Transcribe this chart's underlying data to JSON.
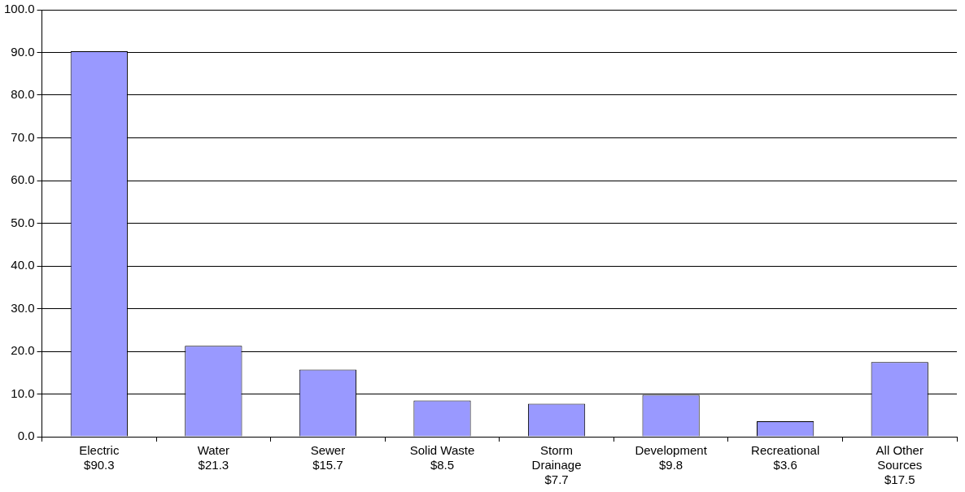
{
  "chart_data": {
    "type": "bar",
    "categories": [
      "Electric\n$90.3",
      "Water\n$21.3",
      "Sewer\n$15.7",
      "Solid Waste\n$8.5",
      "Storm\nDrainage\n$7.7",
      "Development\n$9.8",
      "Recreational\n$3.6",
      "All Other\nSources\n$17.5"
    ],
    "values": [
      90.3,
      21.3,
      15.7,
      8.5,
      7.7,
      9.8,
      3.6,
      17.5
    ],
    "color": "#9999ff",
    "ylim": [
      0,
      100
    ],
    "yticks": [
      {
        "value": 0,
        "label": "0.0"
      },
      {
        "value": 10,
        "label": "10.0"
      },
      {
        "value": 20,
        "label": "20.0"
      },
      {
        "value": 30,
        "label": "30.0"
      },
      {
        "value": 40,
        "label": "40.0"
      },
      {
        "value": 50,
        "label": "50.0"
      },
      {
        "value": 60,
        "label": "60.0"
      },
      {
        "value": 70,
        "label": "70.0"
      },
      {
        "value": 80,
        "label": "80.0"
      },
      {
        "value": 90,
        "label": "90.0"
      },
      {
        "value": 100,
        "label": "100.0"
      }
    ],
    "grid": "y",
    "legend": false
  }
}
